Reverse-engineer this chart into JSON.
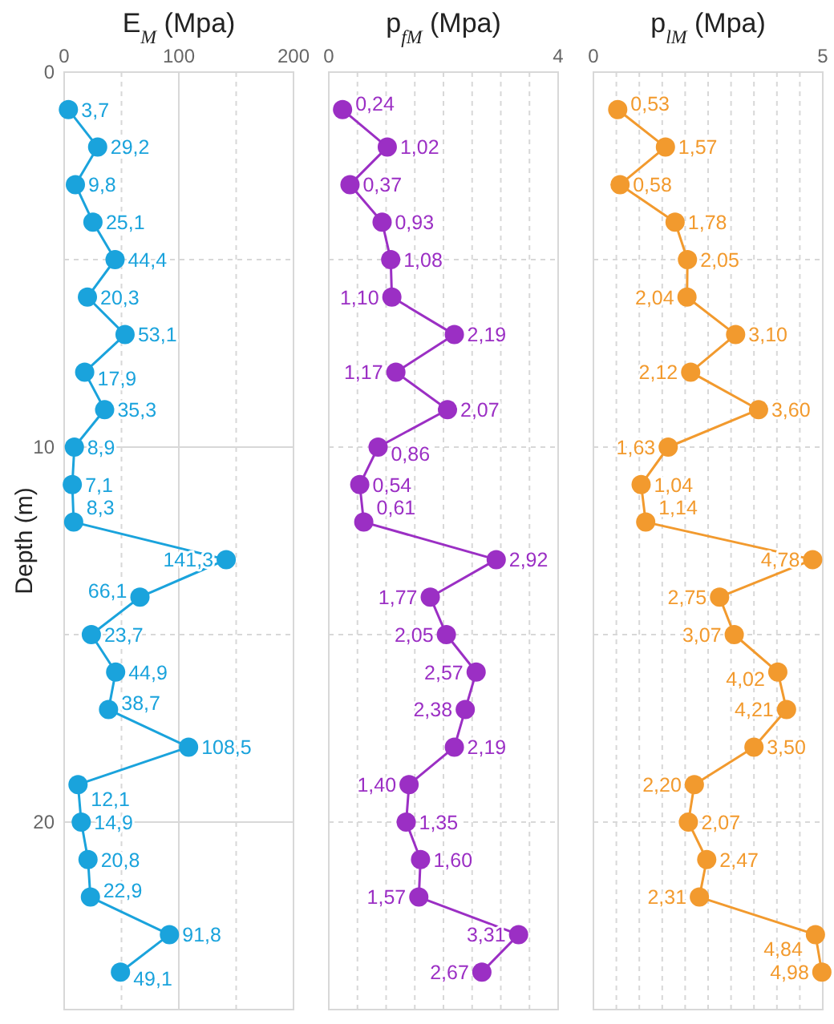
{
  "chart_data": [
    {
      "type": "line",
      "orientation": "horizontal",
      "title": "E$_{M}$ (Mpa)",
      "ylabel": "Depth (m)",
      "x": [
        1,
        2,
        3,
        4,
        5,
        6,
        7,
        8,
        9,
        10,
        11,
        12,
        13,
        14,
        15,
        16,
        17,
        18,
        19,
        20,
        21,
        22,
        23,
        24
      ],
      "series": [
        {
          "color": "#1aa3dc",
          "values": [
            3.7,
            29.2,
            9.8,
            25.1,
            44.4,
            20.3,
            53.1,
            17.9,
            35.3,
            8.9,
            7.1,
            8.3,
            141.3,
            66.1,
            23.7,
            44.9,
            38.7,
            108.5,
            12.1,
            14.9,
            20.8,
            22.9,
            91.8,
            49.1
          ],
          "value_labels": [
            "3,7",
            "29,2",
            "9,8",
            "25,1",
            "44,4",
            "20,3",
            "53,1",
            "17,9",
            "35,3",
            "8,9",
            "7,1",
            "8,3",
            "141,3",
            "66,1",
            "23,7",
            "44,9",
            "38,7",
            "108,5",
            "12,1",
            "14,9",
            "20,8",
            "22,9",
            "91,8",
            "49,1"
          ]
        }
      ],
      "xlim": [
        0,
        200
      ],
      "xticks": [
        0,
        {
          "value": 50,
          "label": null
        },
        100,
        {
          "value": 150,
          "label": null
        },
        200
      ],
      "ylim": [
        25,
        0
      ],
      "yticks": [
        0,
        {
          "value": 5,
          "label": null
        },
        10,
        {
          "value": 15,
          "label": null
        },
        20
      ],
      "grid": true,
      "marker": "circle",
      "line_style": "solid"
    },
    {
      "type": "line",
      "orientation": "horizontal",
      "title": "p$_{fM}$ (Mpa)",
      "x": [
        1,
        2,
        3,
        4,
        5,
        6,
        7,
        8,
        9,
        10,
        11,
        12,
        13,
        14,
        15,
        16,
        17,
        18,
        19,
        20,
        21,
        22,
        23,
        24
      ],
      "series": [
        {
          "color": "#9b2fc4",
          "values": [
            0.24,
            1.02,
            0.37,
            0.93,
            1.08,
            1.1,
            2.19,
            1.17,
            2.07,
            0.86,
            0.54,
            0.61,
            2.92,
            1.77,
            2.05,
            2.57,
            2.38,
            2.19,
            1.4,
            1.35,
            1.6,
            1.57,
            3.31,
            2.67
          ],
          "value_labels": [
            "0,24",
            "1,02",
            "0,37",
            "0,93",
            "1,08",
            "1,10",
            "2,19",
            "1,17",
            "2,07",
            "0,86",
            "0,54",
            "0,61",
            "2,92",
            "1,77",
            "2,05",
            "2,57",
            "2,38",
            "2,19",
            "1,40",
            "1,35",
            "1,60",
            "1,57",
            "3,31",
            "2,67"
          ]
        }
      ],
      "xlim": [
        0,
        4
      ],
      "xticks": [
        0,
        {
          "value": 0.5,
          "label": null
        },
        {
          "value": 1,
          "label": null
        },
        {
          "value": 1.5,
          "label": null
        },
        {
          "value": 2,
          "label": null
        },
        {
          "value": 2.5,
          "label": null
        },
        {
          "value": 3,
          "label": null
        },
        {
          "value": 3.5,
          "label": null
        },
        4
      ],
      "ylim": [
        25,
        0
      ],
      "yticks": [
        {
          "value": 0,
          "label": null
        },
        {
          "value": 5,
          "label": null
        },
        {
          "value": 10,
          "label": null
        },
        {
          "value": 15,
          "label": null
        },
        {
          "value": 20,
          "label": null
        }
      ],
      "tick_labels": "x",
      "grid": true,
      "marker": "circle",
      "line_style": "solid"
    },
    {
      "type": "line",
      "orientation": "horizontal",
      "title": "p$_{lM}$ (Mpa)",
      "x": [
        1,
        2,
        3,
        4,
        5,
        6,
        7,
        8,
        9,
        10,
        11,
        12,
        13,
        14,
        15,
        16,
        17,
        18,
        19,
        20,
        21,
        22,
        23,
        24
      ],
      "series": [
        {
          "color": "#f29a2e",
          "values": [
            0.53,
            1.57,
            0.58,
            1.78,
            2.05,
            2.04,
            3.1,
            2.12,
            3.6,
            1.63,
            1.04,
            1.14,
            4.78,
            2.75,
            3.07,
            4.02,
            4.21,
            3.5,
            2.2,
            2.07,
            2.47,
            2.31,
            4.84,
            4.98
          ],
          "value_labels": [
            "0,53",
            "1,57",
            "0,58",
            "1,78",
            "2,05",
            "2,04",
            "3,10",
            "2,12",
            "3,60",
            "1,63",
            "1,04",
            "1,14",
            "4,78",
            "2,75",
            "3,07",
            "4,02",
            "4,21",
            "3,50",
            "2,20",
            "2,07",
            "2,47",
            "2,31",
            "4,84",
            "4,98"
          ]
        }
      ],
      "xlim": [
        0,
        5
      ],
      "xticks": [
        0,
        {
          "value": 0.5,
          "label": null
        },
        {
          "value": 1,
          "label": null
        },
        {
          "value": 1.5,
          "label": null
        },
        {
          "value": 2,
          "label": null
        },
        {
          "value": 2.5,
          "label": null
        },
        {
          "value": 3,
          "label": null
        },
        {
          "value": 3.5,
          "label": null
        },
        {
          "value": 4,
          "label": null
        },
        {
          "value": 4.5,
          "label": null
        },
        5
      ],
      "ylim": [
        25,
        0
      ],
      "yticks": [
        {
          "value": 0,
          "label": null
        },
        {
          "value": 5,
          "label": null
        },
        {
          "value": 10,
          "label": null
        },
        {
          "value": 15,
          "label": null
        },
        {
          "value": 20,
          "label": null
        }
      ],
      "tick_labels": "x",
      "grid": true,
      "marker": "circle",
      "line_style": "solid"
    }
  ]
}
